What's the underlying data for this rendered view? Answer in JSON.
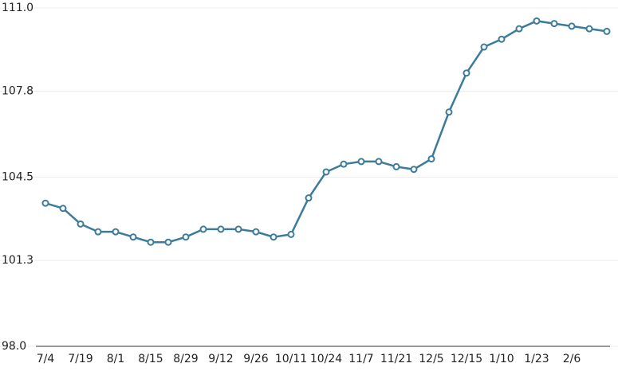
{
  "chart_data": {
    "type": "line",
    "categories": [
      "7/4",
      null,
      "7/19",
      null,
      "8/1",
      null,
      "8/15",
      null,
      "8/29",
      null,
      "9/12",
      null,
      "9/26",
      null,
      "10/11",
      null,
      "10/24",
      null,
      "11/7",
      null,
      "11/21",
      null,
      "12/5",
      null,
      "12/15",
      null,
      "1/10",
      null,
      "1/23",
      null,
      "2/6",
      null,
      null
    ],
    "series": [
      {
        "color": "#3d7b9a",
        "values": [
          103.5,
          103.3,
          102.7,
          102.4,
          102.4,
          102.2,
          102.0,
          102.0,
          102.2,
          102.5,
          102.5,
          102.5,
          102.4,
          102.2,
          102.3,
          103.7,
          104.7,
          105.0,
          105.1,
          105.1,
          104.9,
          104.8,
          105.2,
          107.0,
          108.5,
          109.5,
          109.8,
          110.2,
          110.5,
          110.4,
          110.3,
          110.2,
          110.1
        ]
      }
    ],
    "ylim": [
      98,
      111
    ],
    "yticks": [
      {
        "value": 98,
        "label": "98.0"
      },
      101.3,
      104.5,
      107.8,
      {
        "value": 111,
        "label": "111.0"
      }
    ],
    "grid": true
  }
}
